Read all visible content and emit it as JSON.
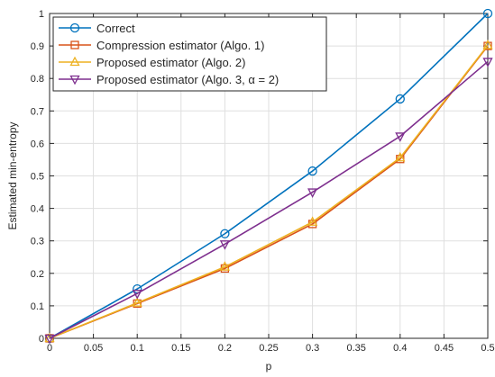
{
  "chart_data": {
    "type": "line",
    "title": "",
    "xlabel": "p",
    "ylabel": "Estimated min-entropy",
    "xlim": [
      0,
      0.5
    ],
    "ylim": [
      0,
      1
    ],
    "xticks": [
      "0",
      "0.05",
      "0.1",
      "0.15",
      "0.2",
      "0.25",
      "0.3",
      "0.35",
      "0.4",
      "0.45",
      "0.5"
    ],
    "yticks": [
      "0",
      "0.1",
      "0.2",
      "0.3",
      "0.4",
      "0.5",
      "0.6",
      "0.7",
      "0.8",
      "0.9",
      "1"
    ],
    "grid": true,
    "legend_position": "top-left",
    "x": [
      0,
      0.1,
      0.2,
      0.3,
      0.4,
      0.5
    ],
    "series": [
      {
        "name": "Correct",
        "color": "#0072BD",
        "marker": "circle",
        "values": [
          0,
          0.152,
          0.322,
          0.515,
          0.737,
          1.0
        ]
      },
      {
        "name": "Compression estimator (Algo. 1)",
        "color": "#D95319",
        "marker": "square",
        "values": [
          0,
          0.107,
          0.215,
          0.352,
          0.552,
          0.9
        ]
      },
      {
        "name": "Proposed estimator (Algo. 2)",
        "color": "#EDB120",
        "marker": "triangle-up",
        "values": [
          0,
          0.109,
          0.22,
          0.358,
          0.556,
          0.902
        ]
      },
      {
        "name": "Proposed estimator (Algo. 3, α = 2)",
        "color": "#7E2F8E",
        "marker": "triangle-down",
        "values": [
          0,
          0.138,
          0.29,
          0.45,
          0.622,
          0.852
        ]
      }
    ]
  }
}
